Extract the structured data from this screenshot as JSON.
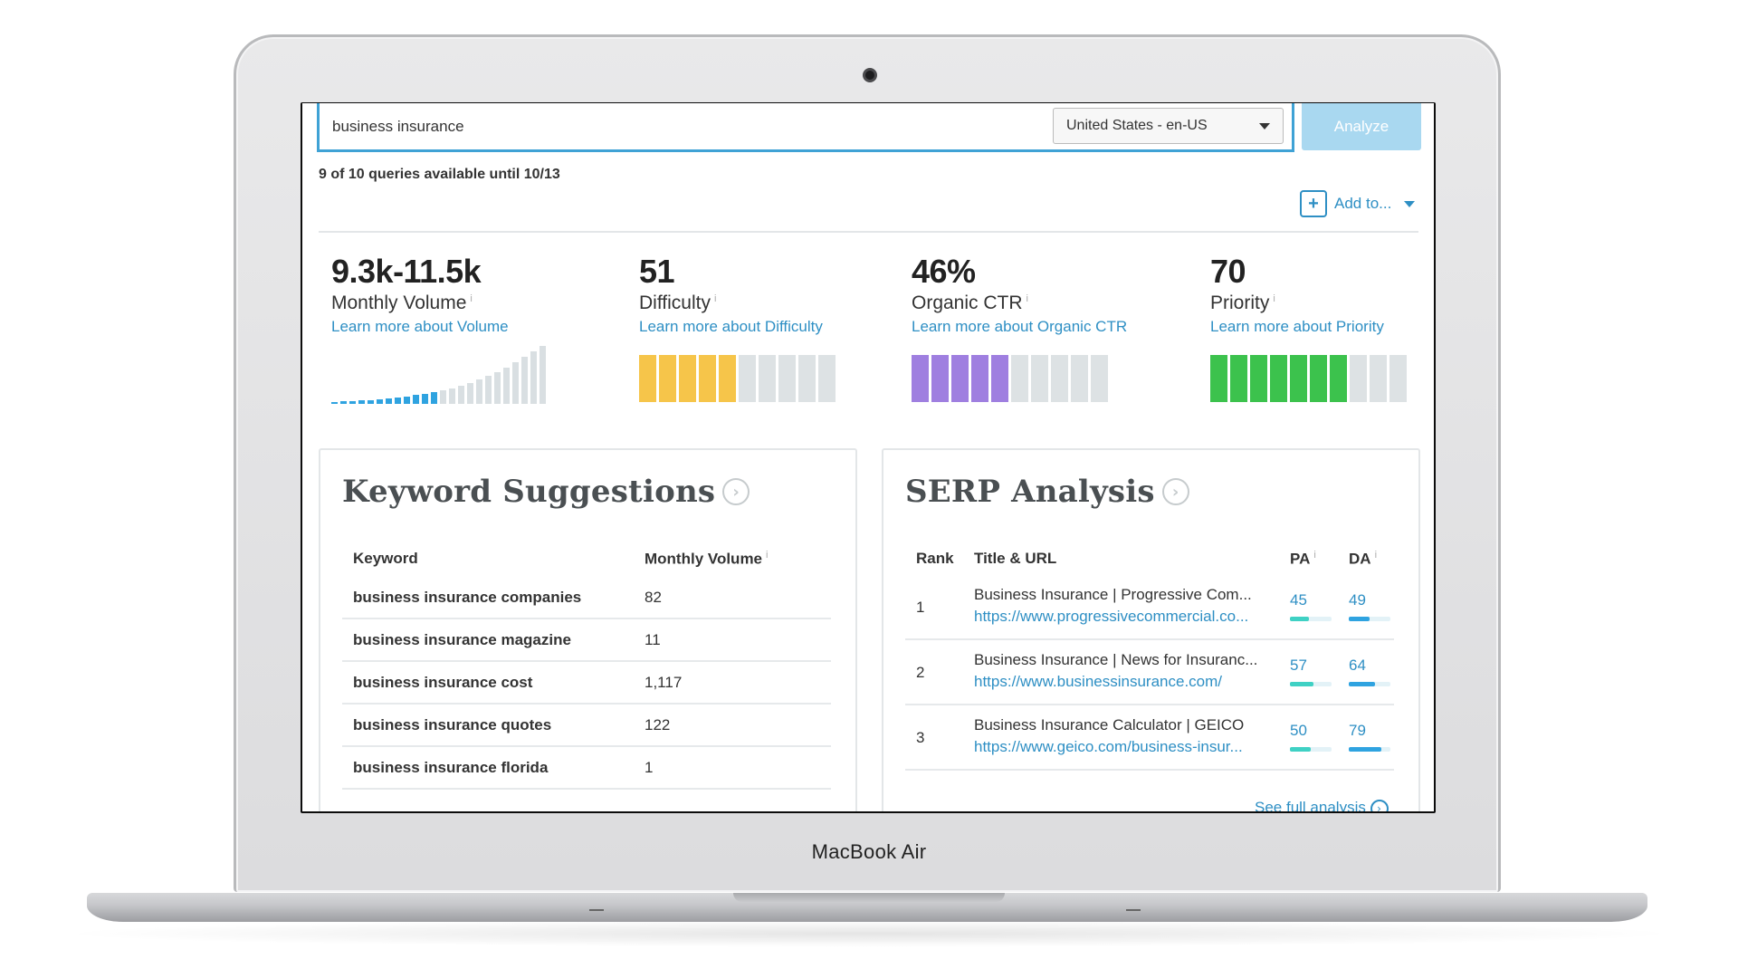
{
  "device": {
    "label": "MacBook Air"
  },
  "search": {
    "query": "business insurance",
    "locale": "United States - en-US",
    "analyze_label": "Analyze",
    "queries_note": "9 of 10 queries available until 10/13",
    "add_to_label": "Add to..."
  },
  "metrics": {
    "volume": {
      "value": "9.3k-11.5k",
      "label": "Monthly Volume",
      "link": "Learn more about Volume",
      "history_levels": [
        0.03,
        0.04,
        0.05,
        0.06,
        0.07,
        0.08,
        0.09,
        0.11,
        0.13,
        0.15,
        0.17,
        0.2,
        0.23,
        0.27,
        0.31,
        0.36,
        0.42,
        0.48,
        0.55,
        0.63,
        0.72,
        0.82,
        0.9,
        1.0
      ],
      "highlighted_bars": [
        0,
        1,
        2,
        3,
        4,
        5,
        6,
        7,
        8,
        9,
        10,
        11
      ]
    },
    "difficulty": {
      "value": "51",
      "label": "Difficulty",
      "link": "Learn more about Difficulty",
      "filled_segments": 5,
      "total_segments": 10,
      "color": "#f6c54a"
    },
    "ctr": {
      "value": "46%",
      "label": "Organic CTR",
      "link": "Learn more about Organic CTR",
      "filled_segments": 5,
      "total_segments": 10,
      "color": "#9f7fe0"
    },
    "priority": {
      "value": "70",
      "label": "Priority",
      "link": "Learn more about Priority",
      "filled_segments": 7,
      "total_segments": 10,
      "color": "#3cc24d"
    }
  },
  "keyword_suggestions": {
    "title": "Keyword Suggestions",
    "columns": [
      "Keyword",
      "Monthly Volume"
    ],
    "rows": [
      {
        "keyword": "business insurance companies",
        "volume": "82"
      },
      {
        "keyword": "business insurance magazine",
        "volume": "11"
      },
      {
        "keyword": "business insurance cost",
        "volume": "1,117"
      },
      {
        "keyword": "business insurance quotes",
        "volume": "122"
      },
      {
        "keyword": "business insurance florida",
        "volume": "1"
      }
    ]
  },
  "serp_analysis": {
    "title": "SERP Analysis",
    "columns": [
      "Rank",
      "Title & URL",
      "PA",
      "DA"
    ],
    "rows": [
      {
        "rank": "1",
        "title": "Business Insurance | Progressive Com...",
        "url": "https://www.progressivecommercial.co...",
        "pa": "45",
        "da": "49"
      },
      {
        "rank": "2",
        "title": "Business Insurance | News for Insuranc...",
        "url": "https://www.businessinsurance.com/",
        "pa": "57",
        "da": "64"
      },
      {
        "rank": "3",
        "title": "Business Insurance Calculator | GEICO",
        "url": "https://www.geico.com/business-insur...",
        "pa": "50",
        "da": "79"
      }
    ],
    "see_full": "See full analysis"
  },
  "colors": {
    "accent": "#2e8fc4",
    "pa_bar": "#3fd1c4",
    "da_bar": "#2fa3e0"
  }
}
